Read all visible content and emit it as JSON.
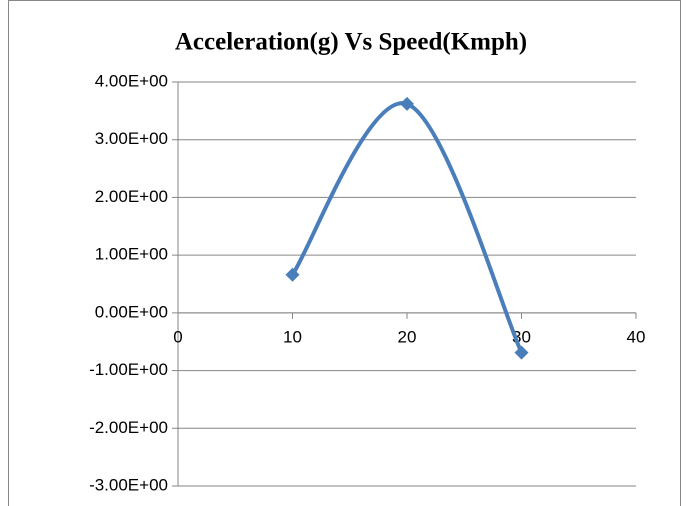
{
  "chart_data": {
    "type": "scatter-smooth",
    "title": "Acceleration(g) Vs Speed(Kmph)",
    "series": [
      {
        "name": "Acceleration(g)",
        "color": "#4a7ebb",
        "x": [
          10,
          20,
          30
        ],
        "values": [
          0.66,
          3.62,
          -0.69
        ]
      }
    ],
    "xlim": [
      0,
      40
    ],
    "xticks": [
      0,
      10,
      20,
      30,
      40
    ],
    "ylim": [
      -3,
      4
    ],
    "yticks": [
      {
        "value": -3,
        "label": "-3.00E+00"
      },
      {
        "value": -2,
        "label": "-2.00E+00"
      },
      {
        "value": -1,
        "label": "-1.00E+00"
      },
      {
        "value": 0,
        "label": "0.00E+00"
      },
      {
        "value": 1,
        "label": "1.00E+00"
      },
      {
        "value": 2,
        "label": "2.00E+00"
      },
      {
        "value": 3,
        "label": "3.00E+00"
      },
      {
        "value": 4,
        "label": "4.00E+00"
      }
    ],
    "grid": true
  }
}
